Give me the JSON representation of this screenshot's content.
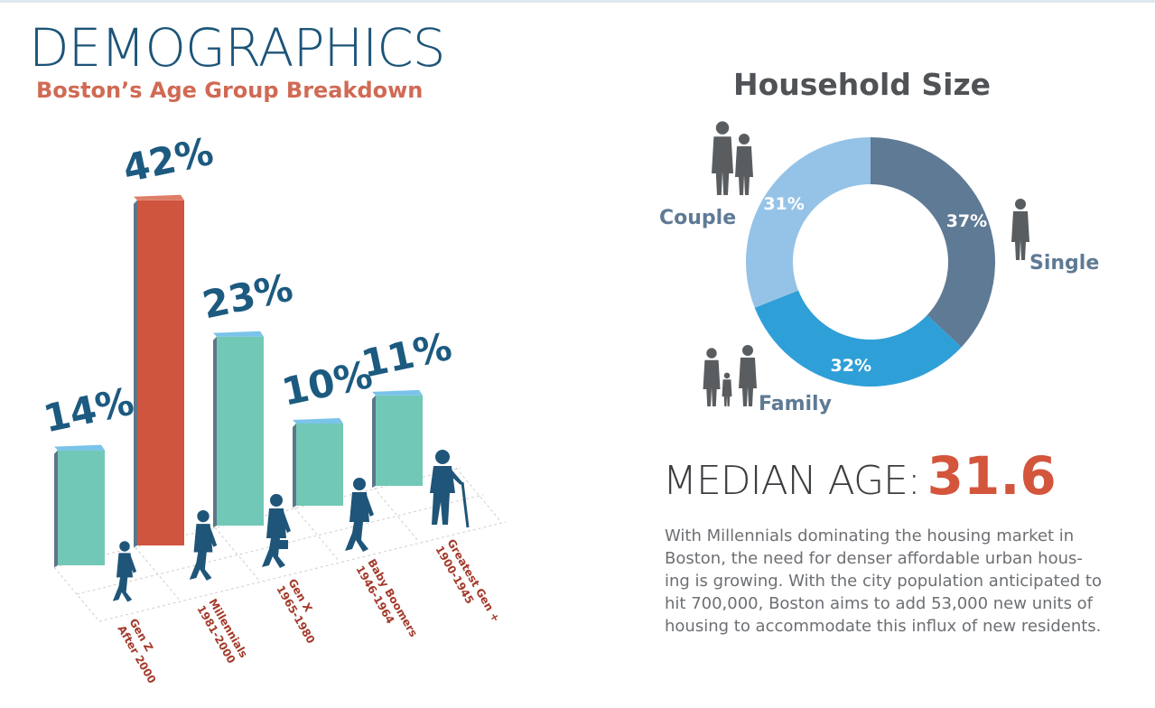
{
  "header": {
    "title": "DEMOGRAPHICS",
    "subtitle": "Boston’s Age Group Breakdown"
  },
  "chart_data": [
    {
      "type": "bar",
      "title": "Boston’s Age Group Breakdown",
      "categories": [
        {
          "name": "Gen Z",
          "years": "After 2000"
        },
        {
          "name": "Millennials",
          "years": "1981-2000"
        },
        {
          "name": "Gen X",
          "years": "1965-1980"
        },
        {
          "name": "Baby Boomers",
          "years": "1946-1964"
        },
        {
          "name": "Greatest Gen +",
          "years": "1900-1945"
        }
      ],
      "values": [
        14,
        42,
        23,
        10,
        11
      ],
      "value_labels": [
        "14%",
        "42%",
        "23%",
        "10%",
        "11%"
      ],
      "unit": "%",
      "highlight_index": 1,
      "colors": {
        "bar": "#72c8b6",
        "highlight": "#d0553f",
        "bar_top": "#7ac3ea",
        "highlight_top": "#de7e68",
        "bar_side": "#5d7689",
        "labels": "#1c5a80",
        "category_labels": "#a33a2a"
      }
    },
    {
      "type": "pie",
      "title": "Household Size",
      "slices": [
        {
          "label": "Single",
          "value": 37,
          "display": "37%",
          "color": "#5f7a94"
        },
        {
          "label": "Family",
          "value": 32,
          "display": "32%",
          "color": "#2f9fd8"
        },
        {
          "label": "Couple",
          "value": 31,
          "display": "31%",
          "color": "#95c3e7"
        }
      ],
      "donut": true
    }
  ],
  "median_age": {
    "label": "MEDIAN AGE:",
    "value": "31.6"
  },
  "description": "With Millennials dominating the housing market in Boston, the need for denser affordable urban hous-ing is growing. With the city population anticipated to hit 700,000, Boston aims to add 53,000 new units of housing to accommodate this influx of new residents.",
  "icons": [
    "person-silhouette-icon",
    "couple-silhouette-icon",
    "family-silhouette-icon",
    "elderly-with-cane-icon",
    "businessman-icon"
  ]
}
